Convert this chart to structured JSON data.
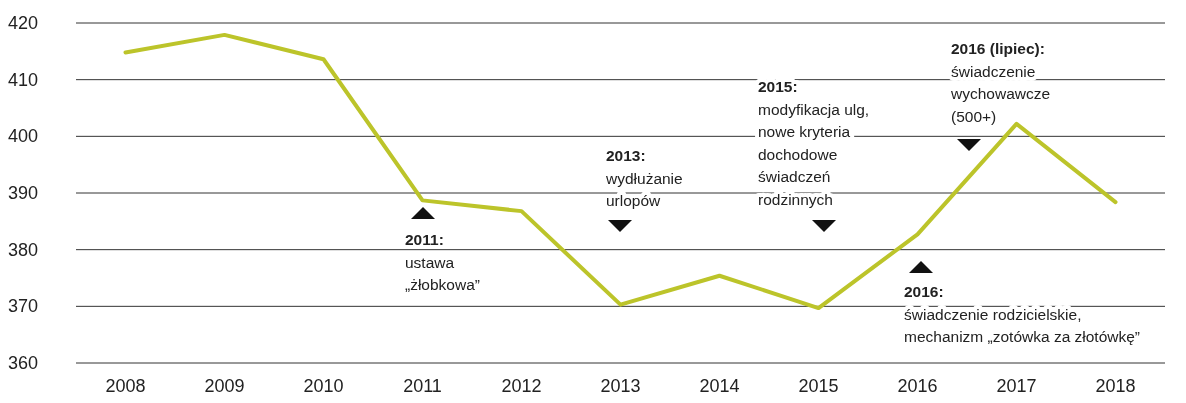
{
  "chart_data": {
    "type": "line",
    "categories": [
      "2008",
      "2009",
      "2010",
      "2011",
      "2012",
      "2013",
      "2014",
      "2015",
      "2016",
      "2017",
      "2018"
    ],
    "series": [
      {
        "color": "#bcc42a",
        "values": [
          414.8,
          417.9,
          413.6,
          388.7,
          386.8,
          370.3,
          375.4,
          369.7,
          382.7,
          402.2,
          388.4
        ]
      }
    ],
    "ylim": [
      360,
      420
    ],
    "yticks": [
      360,
      370,
      380,
      390,
      400,
      410,
      420
    ],
    "grid": "y",
    "annotations": [
      "2011:\nustawa\n„żłobkowa”",
      "2013:\nwydłużanie\nurlopów",
      "2015:\nmodyfikacja ulg,\nnowe kryteria\ndochodowe\nświadczeń\nrodzinnych",
      "2016:\nświadczenie rodzicielskie,\nmechanizm „zotówka za złotówkę”",
      "2016 (lipiec):\nświadczenie\nwychowawcze\n(500+)"
    ]
  }
}
